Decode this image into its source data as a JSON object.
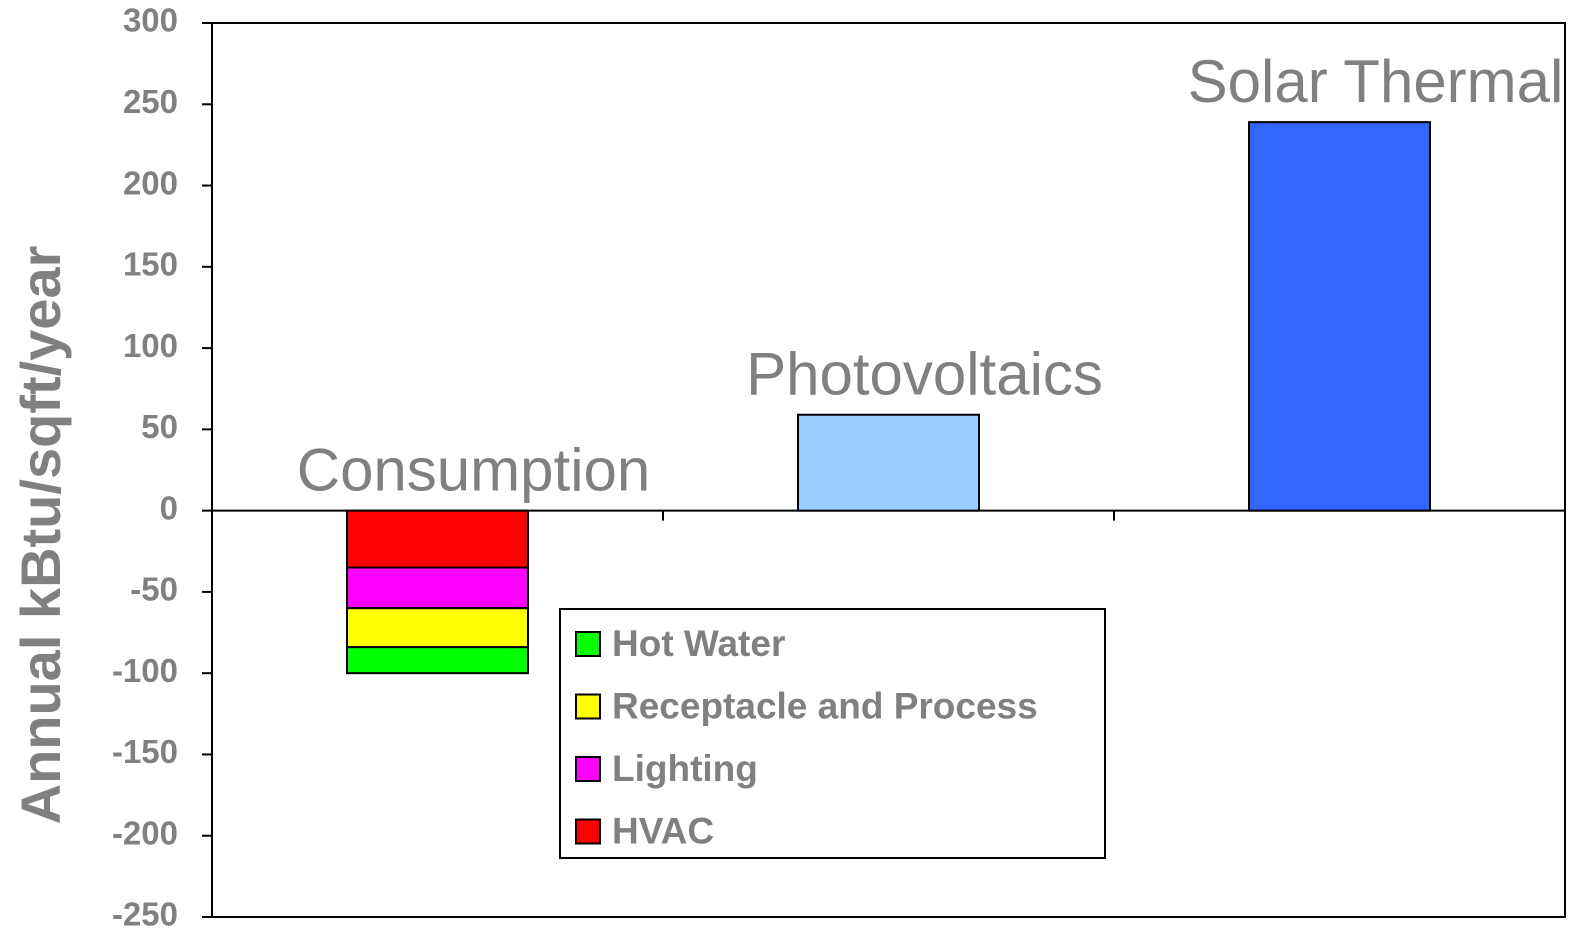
{
  "chart_data": {
    "type": "stacked_bar",
    "y_axis_label": "Annual kBtu/sqft/year",
    "categories": [
      "Consumption",
      "Photovoltaics",
      "Solar Thermal"
    ],
    "series": [
      {
        "name": "HVAC",
        "color": "#ff0000",
        "values": [
          -35,
          null,
          null
        ]
      },
      {
        "name": "Lighting",
        "color": "#ff00ff",
        "values": [
          -25,
          null,
          null
        ]
      },
      {
        "name": "Receptacle and Process",
        "color": "#ffff00",
        "values": [
          -24,
          null,
          null
        ]
      },
      {
        "name": "Hot Water",
        "color": "#00ff00",
        "values": [
          -16,
          null,
          null
        ]
      }
    ],
    "generation": {
      "values": [
        null,
        59,
        239
      ],
      "colors": [
        null,
        "#99ccff",
        "#3366ff"
      ]
    },
    "ylim": [
      -250,
      300
    ],
    "yticks": [
      -250,
      -200,
      -150,
      -100,
      -50,
      0,
      50,
      100,
      150,
      200,
      250,
      300
    ],
    "legend": "center"
  }
}
